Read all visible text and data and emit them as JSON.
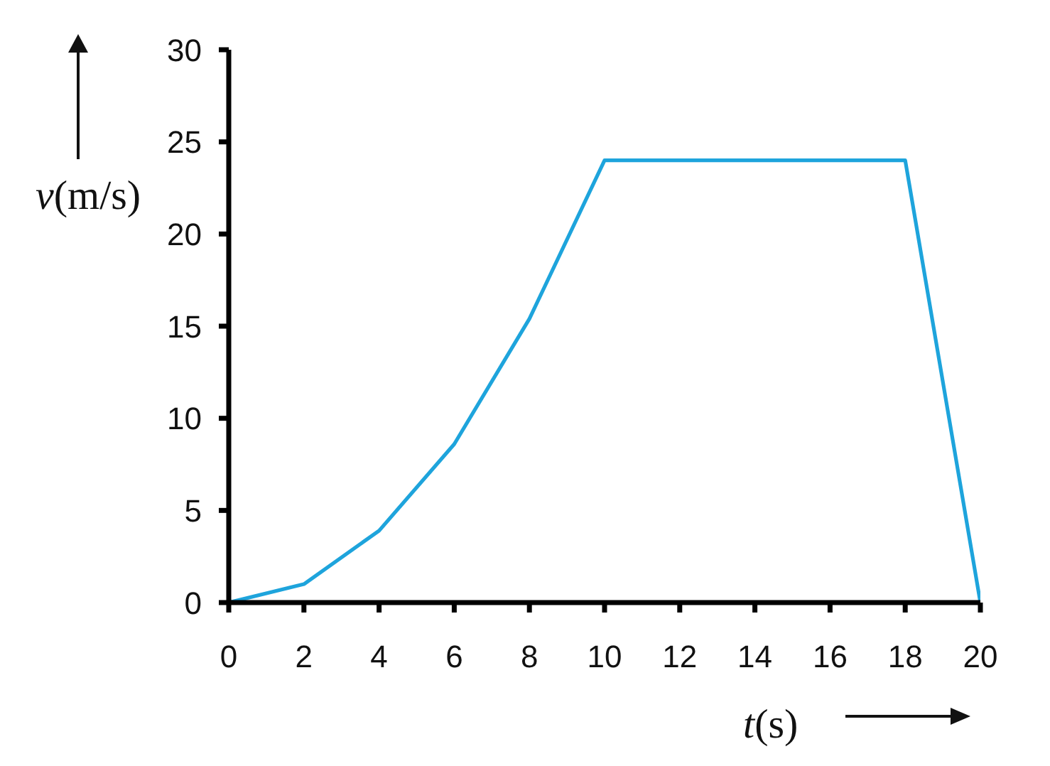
{
  "chart_data": {
    "type": "line",
    "xlabel": "t(s)",
    "ylabel": "v(m/s)",
    "x": [
      0,
      2,
      4,
      6,
      8,
      10,
      18,
      20
    ],
    "values": [
      0,
      1,
      3.9,
      8.6,
      15.4,
      24,
      24,
      0
    ],
    "color": "#1ea4dc",
    "xlim": [
      0,
      20
    ],
    "ylim": [
      0,
      30
    ],
    "xticks": [
      0,
      2,
      4,
      6,
      8,
      10,
      12,
      14,
      16,
      18,
      20
    ],
    "yticks": [
      0,
      5,
      10,
      15,
      20,
      25,
      30
    ],
    "marker": "none",
    "line_style": "solid",
    "legend": false,
    "grid": false
  }
}
